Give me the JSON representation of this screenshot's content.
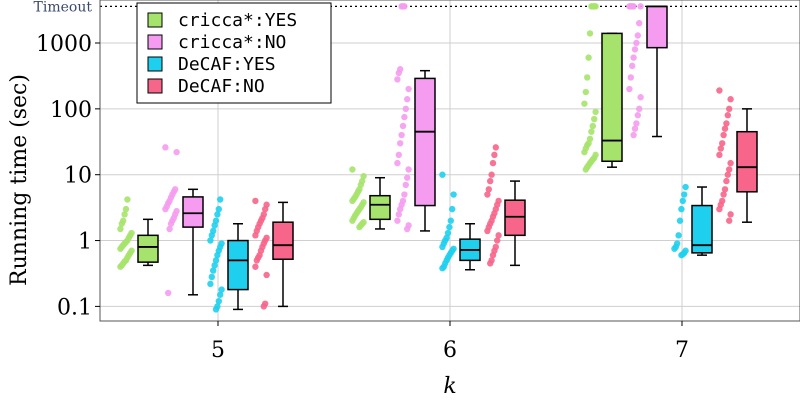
{
  "chart_data": {
    "type": "box-strip",
    "title": "",
    "xlabel": "k",
    "ylabel": "Running time (sec)",
    "yscale": "log",
    "ylim": [
      0.06,
      4500
    ],
    "yticks": [
      0.1,
      1,
      10,
      100,
      1000
    ],
    "ytick_labels": [
      "0.1",
      "1",
      "10",
      "100",
      "1000"
    ],
    "timeout_value": 3600,
    "timeout_label": "Timeout",
    "categories": [
      "5",
      "6",
      "7"
    ],
    "series": [
      {
        "name": "cricca*:YES",
        "color": "#a6e36c",
        "boxes": [
          {
            "min": 0.42,
            "q1": 0.47,
            "median": 0.8,
            "q3": 1.2,
            "max": 2.1
          },
          {
            "min": 1.5,
            "q1": 2.1,
            "median": 3.5,
            "q3": 4.8,
            "max": 9.0
          },
          {
            "min": 13,
            "q1": 16,
            "median": 33,
            "q3": 1400,
            "max": 1400
          }
        ],
        "points": [
          [
            0.4,
            0.42,
            0.45,
            0.48,
            0.5,
            0.55,
            0.6,
            0.65,
            0.7,
            0.75,
            0.8,
            0.85,
            0.9,
            0.95,
            1.0,
            1.1,
            1.2,
            1.3,
            1.5,
            1.8,
            2.0,
            2.5,
            3.0,
            4.2
          ],
          [
            1.6,
            1.7,
            1.8,
            1.9,
            2.0,
            2.2,
            2.4,
            2.6,
            2.8,
            3.0,
            3.2,
            3.5,
            3.8,
            4.0,
            4.3,
            4.6,
            5.0,
            5.5,
            6.0,
            7.0,
            8.0,
            9.5,
            12
          ],
          [
            12,
            13,
            14,
            15,
            16,
            17,
            18,
            20,
            22,
            25,
            28,
            30,
            35,
            45,
            55,
            70,
            90,
            120,
            180,
            300,
            600,
            1400,
            3600,
            3600,
            3600,
            3600
          ]
        ]
      },
      {
        "name": "cricca*:NO",
        "color": "#f59cf0",
        "boxes": [
          {
            "min": 0.15,
            "q1": 1.6,
            "median": 2.6,
            "q3": 4.6,
            "max": 6.0
          },
          {
            "min": 1.4,
            "q1": 3.4,
            "median": 45,
            "q3": 290,
            "max": 380
          },
          {
            "min": 38,
            "q1": 850,
            "median": 3600,
            "q3": 3600,
            "max": 3600
          }
        ],
        "points": [
          [
            0.16,
            1.5,
            1.8,
            2.0,
            2.2,
            2.5,
            2.8,
            3.0,
            3.3,
            3.7,
            4.0,
            4.5,
            5.0,
            5.5,
            6.0,
            22,
            26
          ],
          [
            1.5,
            1.7,
            2.0,
            2.5,
            3.0,
            3.5,
            4.0,
            5.0,
            7.0,
            9.0,
            12,
            15,
            20,
            30,
            40,
            55,
            75,
            100,
            140,
            200,
            280,
            350,
            400,
            3600,
            3600,
            3600
          ],
          [
            40,
            50,
            60,
            80,
            100,
            150,
            200,
            300,
            450,
            600,
            800,
            1000,
            1300,
            2000,
            3600,
            3600,
            3600,
            3600,
            3600
          ]
        ]
      },
      {
        "name": "DeCAF:YES",
        "color": "#1ed0ee",
        "boxes": [
          {
            "min": 0.09,
            "q1": 0.18,
            "median": 0.5,
            "q3": 1.0,
            "max": 1.8
          },
          {
            "min": 0.36,
            "q1": 0.5,
            "median": 0.72,
            "q3": 1.05,
            "max": 1.8
          },
          {
            "min": 0.6,
            "q1": 0.65,
            "median": 0.85,
            "q3": 3.4,
            "max": 6.5
          }
        ],
        "points": [
          [
            0.09,
            0.1,
            0.12,
            0.15,
            0.18,
            0.22,
            0.28,
            0.35,
            0.42,
            0.5,
            0.6,
            0.7,
            0.8,
            0.9,
            1.0,
            1.2,
            1.4,
            1.7,
            2.0,
            2.5,
            3.0,
            4.2
          ],
          [
            0.38,
            0.4,
            0.45,
            0.5,
            0.55,
            0.6,
            0.65,
            0.7,
            0.75,
            0.8,
            0.9,
            1.0,
            1.1,
            1.3,
            1.6,
            2.0,
            3.0,
            5.0,
            10
          ],
          [
            0.6,
            0.62,
            0.65,
            0.7,
            0.75,
            0.8,
            0.9,
            1.2,
            2.0,
            3.0,
            4.0,
            5.0,
            6.5
          ]
        ]
      },
      {
        "name": "DeCAF:NO",
        "color": "#f7658a",
        "boxes": [
          {
            "min": 0.1,
            "q1": 0.52,
            "median": 0.85,
            "q3": 1.9,
            "max": 3.8
          },
          {
            "min": 0.42,
            "q1": 1.2,
            "median": 2.3,
            "q3": 4.1,
            "max": 8.0
          },
          {
            "min": 1.9,
            "q1": 5.5,
            "median": 13,
            "q3": 45,
            "max": 100
          }
        ],
        "points": [
          [
            0.1,
            0.11,
            0.3,
            0.4,
            0.5,
            0.55,
            0.6,
            0.7,
            0.8,
            0.9,
            1.0,
            1.1,
            1.2,
            1.4,
            1.6,
            1.8,
            2.0,
            2.2,
            2.5,
            3.0,
            3.5,
            4.0
          ],
          [
            0.45,
            0.5,
            0.6,
            0.7,
            0.8,
            1.0,
            1.2,
            1.4,
            1.6,
            1.8,
            2.0,
            2.3,
            2.6,
            3.0,
            3.5,
            4.0,
            5.0,
            6.0,
            8.0,
            10,
            15,
            20,
            26
          ],
          [
            2.0,
            2.5,
            3.0,
            3.5,
            4.0,
            5.0,
            6.0,
            8.0,
            10,
            12,
            15,
            20,
            25,
            30,
            40,
            50,
            60,
            80,
            100,
            140,
            190
          ]
        ]
      }
    ],
    "legend": {
      "position": "top-left"
    }
  }
}
